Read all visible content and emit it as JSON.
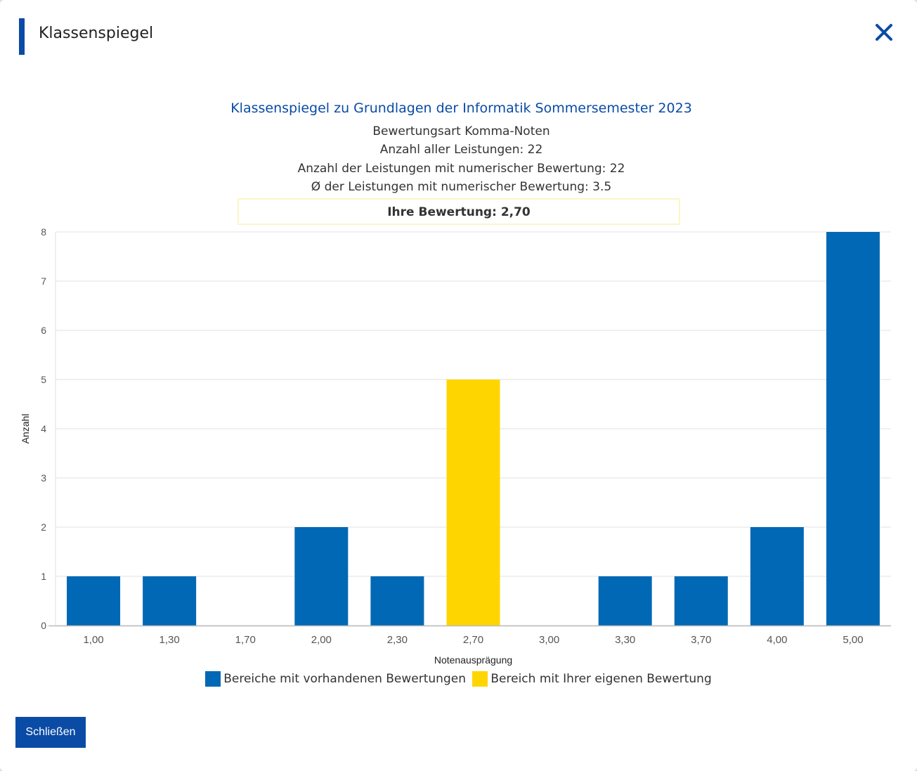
{
  "dialog": {
    "title": "Klassenspiegel",
    "close_icon": "close-icon",
    "close_button_label": "Schließen",
    "accent_color": "#0a4ba6"
  },
  "chart_header": {
    "title": "Klassenspiegel zu Grundlagen der Informatik Sommersemester 2023",
    "line1": "Bewertungsart Komma-Noten",
    "line2": "Anzahl aller Leistungen: 22",
    "line3": "Anzahl der Leistungen mit numerischer Bewertung: 22",
    "line4": "Ø der Leistungen mit numerischer Bewertung: 3.5",
    "own_grade": "Ihre Bewertung: 2,70"
  },
  "chart_data": {
    "type": "bar",
    "categories": [
      "1,00",
      "1,30",
      "1,70",
      "2,00",
      "2,30",
      "2,70",
      "3,00",
      "3,30",
      "3,70",
      "4,00",
      "5,00"
    ],
    "values": [
      1,
      1,
      0,
      2,
      1,
      5,
      0,
      1,
      1,
      2,
      8
    ],
    "highlight_category": "2,70",
    "xlabel": "Notenausprägung",
    "ylabel": "Anzahl",
    "ylim": [
      0,
      8
    ],
    "yticks": [
      "0",
      "1",
      "2",
      "3",
      "4",
      "5",
      "6",
      "7",
      "8"
    ],
    "grid": true,
    "colors": {
      "default": "#0068b4",
      "highlight": "#ffd500"
    },
    "legend": {
      "placement": "bottom",
      "entries": [
        {
          "label": "Bereiche mit vorhandenen Bewertungen",
          "color": "#0068b4"
        },
        {
          "label": "Bereich mit Ihrer eigenen Bewertung",
          "color": "#ffd500"
        }
      ]
    }
  }
}
